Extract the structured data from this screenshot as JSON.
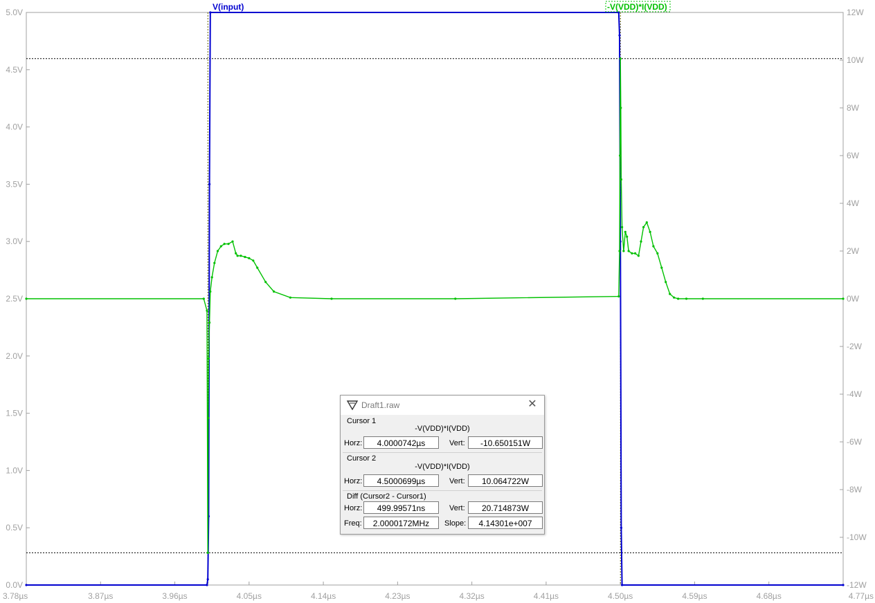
{
  "chart_data": {
    "type": "line",
    "left_axis": {
      "unit": "V",
      "ylim": [
        0,
        5
      ],
      "ticks": [
        "0.0V",
        "0.5V",
        "1.0V",
        "1.5V",
        "2.0V",
        "2.5V",
        "3.0V",
        "3.5V",
        "4.0V",
        "4.5V",
        "5.0V"
      ]
    },
    "right_axis": {
      "unit": "W",
      "ylim": [
        -12,
        12
      ],
      "ticks": [
        "-12W",
        "-10W",
        "-8W",
        "-6W",
        "-4W",
        "-2W",
        "0W",
        "2W",
        "4W",
        "6W",
        "8W",
        "10W",
        "12W"
      ]
    },
    "x_axis": {
      "unit": "µs",
      "xlim": [
        3.78,
        4.77
      ],
      "ticks": [
        "3.78µs",
        "3.87µs",
        "3.96µs",
        "4.05µs",
        "4.14µs",
        "4.23µs",
        "4.32µs",
        "4.41µs",
        "4.50µs",
        "4.59µs",
        "4.68µs",
        "4.77µs"
      ]
    },
    "grid": false,
    "series": [
      {
        "name": "V(input)",
        "axis": "left",
        "color": "#0000d0",
        "x": [
          3.78,
          3.999,
          4.0,
          4.001,
          4.002,
          4.003,
          4.498,
          4.499,
          4.5,
          4.501,
          4.502,
          4.77
        ],
        "y": [
          0,
          0,
          0.05,
          0.6,
          3.5,
          5.0,
          5.0,
          4.8,
          3.0,
          0.5,
          0,
          0
        ]
      },
      {
        "name": "-V(VDD)*I(VDD)",
        "axis": "right",
        "color": "#00c000",
        "x": [
          3.78,
          3.995,
          3.999,
          4.0,
          4.0005,
          4.001,
          4.002,
          4.003,
          4.005,
          4.008,
          4.012,
          4.016,
          4.02,
          4.025,
          4.03,
          4.034,
          4.036,
          4.04,
          4.045,
          4.05,
          4.055,
          4.06,
          4.07,
          4.08,
          4.1,
          4.15,
          4.3,
          4.498,
          4.499,
          4.4995,
          4.5,
          4.5005,
          4.501,
          4.502,
          4.504,
          4.506,
          4.508,
          4.51,
          4.514,
          4.518,
          4.522,
          4.525,
          4.528,
          4.532,
          4.536,
          4.54,
          4.545,
          4.55,
          4.555,
          4.56,
          4.565,
          4.57,
          4.58,
          4.6,
          4.77
        ],
        "y": [
          0,
          0,
          -0.5,
          -10.65,
          -5,
          -2.5,
          -1.0,
          0.3,
          0.9,
          1.5,
          2.0,
          2.2,
          2.3,
          2.3,
          2.4,
          1.9,
          1.8,
          1.8,
          1.75,
          1.7,
          1.6,
          1.3,
          0.7,
          0.3,
          0.05,
          0,
          0,
          0.1,
          2.0,
          6.0,
          10.06,
          8.0,
          5.0,
          3.0,
          2.0,
          2.8,
          2.6,
          2.0,
          1.9,
          1.9,
          1.8,
          2.4,
          3.0,
          3.2,
          2.8,
          2.2,
          1.9,
          1.3,
          0.7,
          0.2,
          0.05,
          0,
          0,
          0,
          0
        ]
      }
    ],
    "cursors": {
      "x": [
        4.0000742,
        4.5000699
      ],
      "y_w": [
        -10.650151,
        10.064722
      ]
    }
  },
  "trace_labels": {
    "input": "V(input)",
    "power": "-V(VDD)*I(VDD)"
  },
  "dialog": {
    "title": "Draft1.raw",
    "cursor1": {
      "title": "Cursor 1",
      "expr": "-V(VDD)*I(VDD)",
      "horz_label": "Horz:",
      "horz": "4.0000742µs",
      "vert_label": "Vert:",
      "vert": "-10.650151W"
    },
    "cursor2": {
      "title": "Cursor 2",
      "expr": "-V(VDD)*I(VDD)",
      "horz_label": "Horz:",
      "horz": "4.5000699µs",
      "vert_label": "Vert:",
      "vert": "10.064722W"
    },
    "diff": {
      "title": "Diff (Cursor2 - Cursor1)",
      "horz_label": "Horz:",
      "horz": "499.99571ns",
      "vert_label": "Vert:",
      "vert": "20.714873W",
      "freq_label": "Freq:",
      "freq": "2.0000172MHz",
      "slope_label": "Slope:",
      "slope": "4.14301e+007"
    }
  }
}
